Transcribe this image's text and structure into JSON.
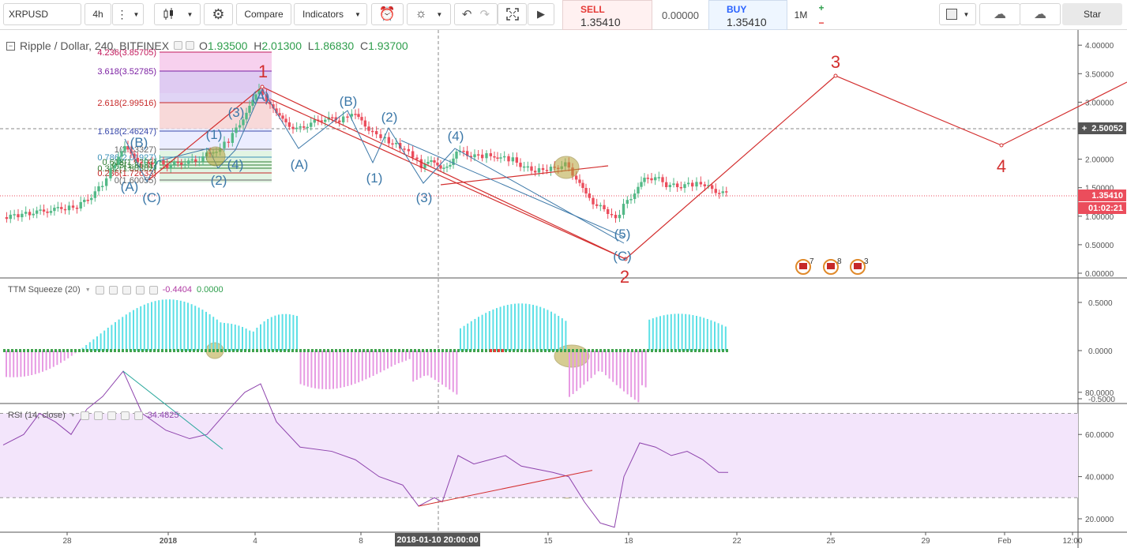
{
  "toolbar": {
    "symbol": "XRPUSD",
    "interval": "4h",
    "compare_label": "Compare",
    "indicators_label": "Indicators",
    "sell_label": "SELL",
    "sell_price": "1.35410",
    "spread": "0.00000",
    "buy_label": "BUY",
    "buy_price": "1.35410",
    "trade_size": "1M",
    "plus": "+",
    "minus": "−",
    "star_label": "Star"
  },
  "main_pane": {
    "title": "Ripple / Dollar, 240, BITFINEX",
    "open_key": "O",
    "open": "1.93500",
    "high_key": "H",
    "high": "2.01300",
    "low_key": "L",
    "low": "1.86830",
    "close_key": "C",
    "close": "1.93700",
    "y_ticks": [
      "4.00000",
      "3.50000",
      "3.00000",
      "2.50000",
      "2.00000",
      "1.50000",
      "1.00000",
      "0.50000",
      "0.00000"
    ],
    "last_price": "1.35410",
    "countdown": "01:02:21",
    "crosshair_price": "2.50052",
    "crosshair_plus": "+",
    "fib_levels": [
      "4.236(3.85705)",
      "3.618(3.52785)",
      "2.618(2.99516)",
      "1.618(2.46247)",
      "1(2.13327)",
      "0.786(2.01927)",
      "0.618(1.9293)",
      "0.5(1.8661)",
      "0.382(1.80302)",
      "0.236(1.72633)",
      "0(1.60055)"
    ],
    "wave_labels": [
      "1",
      "2",
      "3",
      "4",
      "(A)",
      "(B)",
      "(C)",
      "(1)",
      "(2)",
      "(3)",
      "(4)",
      "(5)"
    ],
    "event_counts": [
      "7",
      "8",
      "3"
    ]
  },
  "ttm_pane": {
    "title": "TTM Squeeze (20)",
    "value1": "-0.4404",
    "value2": "0.0000",
    "y_ticks": [
      "0.5000",
      "0.0000",
      "-0.5000"
    ]
  },
  "rsi_pane": {
    "title": "RSI (14, close)",
    "value": "34.4825",
    "y_ticks": [
      "80.0000",
      "60.0000",
      "40.0000",
      "20.0000"
    ]
  },
  "time_axis": {
    "ticks": [
      "28",
      "2018",
      "4",
      "8",
      "15",
      "18",
      "22",
      "25",
      "29",
      "Feb",
      "12:00"
    ],
    "crosshair_time": "2018-01-10 20:00:00"
  },
  "colors": {
    "up": "#53b987",
    "down": "#eb4d5c",
    "wave_red": "#d32f2f",
    "wave_blue": "#3c78a8",
    "ttm_cyan": "#5ce0e6",
    "ttm_magenta": "#e79ae3",
    "rsi_line": "#8e44ad",
    "rsi_band": "#f3e5fb"
  }
}
